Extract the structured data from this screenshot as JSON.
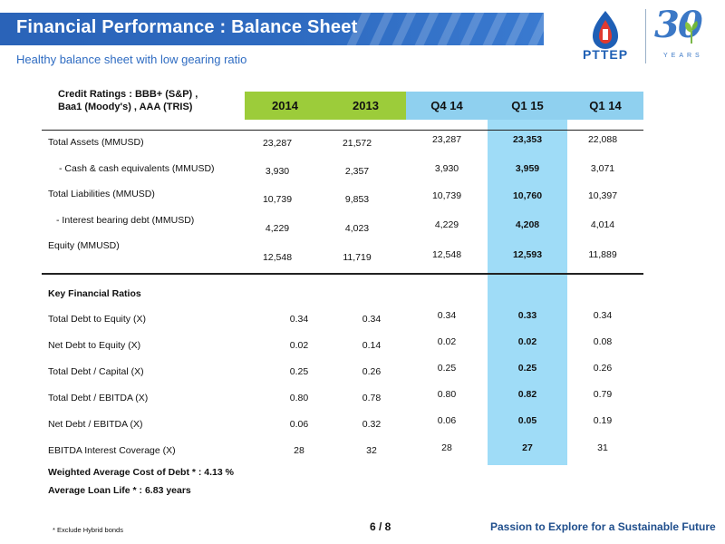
{
  "header": {
    "title": "Financial Performance : Balance Sheet",
    "subtitle": "Healthy balance sheet with low gearing ratio",
    "logo_text": "PTTEP",
    "anniversary_number": "30",
    "anniversary_sub": "YEARS"
  },
  "ratings": {
    "line1": "Credit Ratings :  BBB+ (S&P)  ,",
    "line2": "Baa1 (Moody's)  ,  AAA (TRIS)"
  },
  "columns": [
    "2014",
    "2013",
    "Q4 14",
    "Q1 15",
    "Q1 14"
  ],
  "balance_rows": [
    {
      "label": "Total Assets (MMUSD)",
      "values": [
        "23,287",
        "21,572",
        "23,287",
        "23,353",
        "22,088"
      ]
    },
    {
      "label": "- Cash & cash equivalents (MMUSD)",
      "values": [
        "3,930",
        "2,357",
        "3,930",
        "3,959",
        "3,071"
      ]
    },
    {
      "label": "Total Liabilities (MMUSD)",
      "values": [
        "10,739",
        "9,853",
        "10,739",
        "10,760",
        "10,397"
      ]
    },
    {
      "label": "-  Interest bearing debt (MMUSD)",
      "values": [
        "4,229",
        "4,023",
        "4,229",
        "4,208",
        "4,014"
      ]
    },
    {
      "label": "Equity (MMUSD)",
      "values": [
        "12,548",
        "11,719",
        "12,548",
        "12,593",
        "11,889"
      ]
    }
  ],
  "ratios_heading": "Key Financial Ratios",
  "ratio_rows": [
    {
      "label": "Total Debt to Equity (X)",
      "values": [
        "0.34",
        "0.34",
        "0.34",
        "0.33",
        "0.34"
      ]
    },
    {
      "label": "Net Debt to Equity (X)",
      "values": [
        "0.02",
        "0.14",
        "0.02",
        "0.02",
        "0.08"
      ]
    },
    {
      "label": "Total Debt / Capital (X)",
      "values": [
        "0.25",
        "0.26",
        "0.25",
        "0.25",
        "0.26"
      ]
    },
    {
      "label": "Total Debt / EBITDA (X)",
      "values": [
        "0.80",
        "0.78",
        "0.80",
        "0.82",
        "0.79"
      ]
    },
    {
      "label": "Net Debt / EBITDA (X)",
      "values": [
        "0.06",
        "0.32",
        "0.06",
        "0.05",
        "0.19"
      ]
    },
    {
      "label": "EBITDA Interest Coverage (X)",
      "values": [
        "28",
        "32",
        "28",
        "27",
        "31"
      ]
    }
  ],
  "notes": {
    "wacd": "Weighted Average Cost of Debt * : 4.13 %",
    "loan_life": "Average Loan Life * : 6.83  years"
  },
  "footer": {
    "footnote": "* Exclude Hybrid bonds",
    "page": "6 / 8",
    "tagline": "Passion to Explore for a Sustainable Future"
  },
  "colors": {
    "header_blue": "#2f6cc2",
    "green_header": "#9ccc3a",
    "blue_header": "#8fd0ef",
    "highlight_column": "#9fdcf7",
    "tagline": "#1f4e8c"
  }
}
